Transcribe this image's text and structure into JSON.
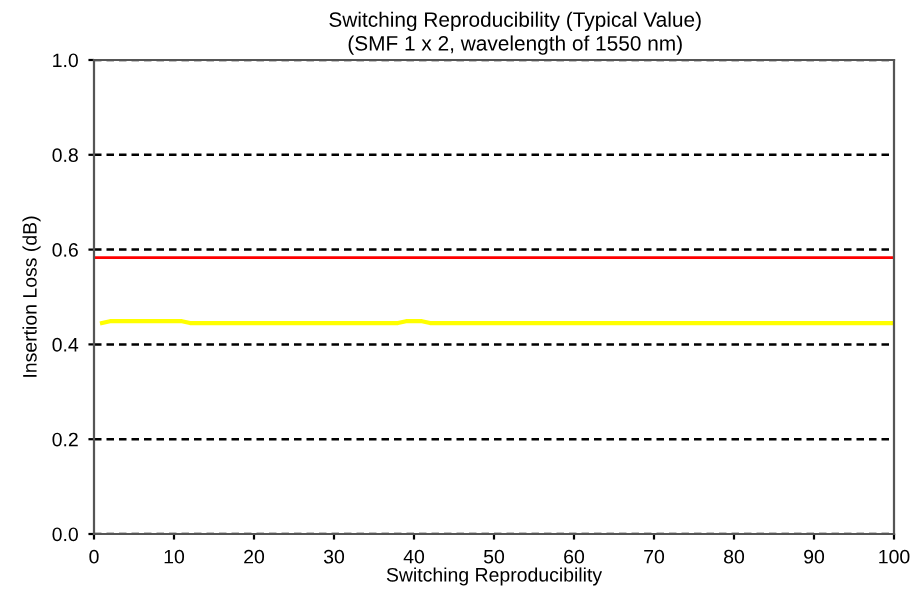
{
  "chart_data": {
    "type": "line",
    "title": "Switching Reproducibility (Typical Value)",
    "subtitle": "(SMF 1 x 2, wavelength of 1550 nm)",
    "xlabel": "Switching Reproducibility",
    "ylabel": "Insertion Loss (dB)",
    "series": [
      {
        "color": "#ffff00",
        "x": [
          1,
          2,
          11,
          12,
          38,
          39,
          41,
          42,
          100
        ],
        "values": [
          0.445,
          0.449,
          0.449,
          0.445,
          0.445,
          0.449,
          0.449,
          0.445,
          0.445
        ]
      }
    ],
    "ref_lines": [
      {
        "axis": "y",
        "value": 0.583,
        "color": "#ff0000",
        "line_style": "solid"
      }
    ],
    "xlim": [
      0,
      100
    ],
    "xticks": [
      0,
      10,
      20,
      30,
      40,
      50,
      60,
      70,
      80,
      90,
      100
    ],
    "ylim": [
      0,
      1
    ],
    "yticks": [
      {
        "value": 0,
        "label": "0.0"
      },
      0.2,
      0.4,
      0.6,
      0.8,
      {
        "value": 1,
        "label": "1.0"
      }
    ],
    "grid": "y",
    "line_style": "solid",
    "marker": "none"
  }
}
